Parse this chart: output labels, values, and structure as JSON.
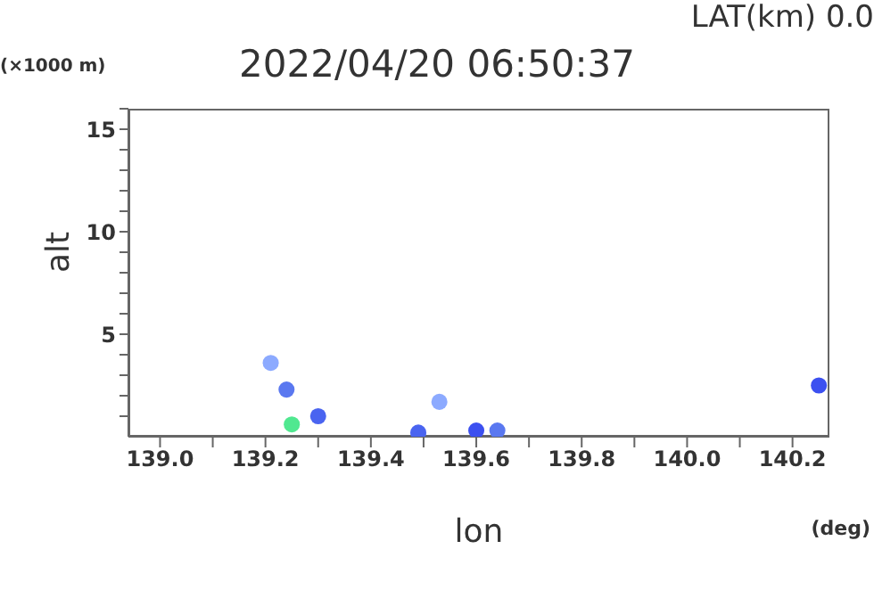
{
  "chart_data": {
    "type": "scatter",
    "title": "2022/04/20 06:50:37",
    "xlabel": "lon",
    "ylabel": "alt",
    "annotations": [
      "LAT(km) 0.0",
      "(×1000 m)",
      "(deg)"
    ],
    "x": [
      139.21,
      139.24,
      139.25,
      139.3,
      139.49,
      139.53,
      139.6,
      139.64,
      140.25
    ],
    "values": [
      3.6,
      2.3,
      0.6,
      1.0,
      0.2,
      1.7,
      0.3,
      0.3,
      2.5
    ],
    "colors": [
      "#8caaff",
      "#5a78f0",
      "#50e890",
      "#4a64f0",
      "#4a64f0",
      "#8caaff",
      "#3c50f0",
      "#5a78f0",
      "#3c50f0"
    ],
    "xlim": [
      138.94,
      140.27
    ],
    "xticks": [
      {
        "value": 139,
        "label": "139.0"
      },
      {
        "value": 139.1,
        "label": null
      },
      {
        "value": 139.2,
        "label": "139.2"
      },
      {
        "value": 139.3,
        "label": null
      },
      {
        "value": 139.4,
        "label": "139.4"
      },
      {
        "value": 139.5,
        "label": null
      },
      {
        "value": 139.6,
        "label": "139.6"
      },
      {
        "value": 139.7,
        "label": null
      },
      {
        "value": 139.8,
        "label": "139.8"
      },
      {
        "value": 139.9,
        "label": null
      },
      {
        "value": 140,
        "label": "140.0"
      },
      {
        "value": 140.1,
        "label": null
      },
      {
        "value": 140.2,
        "label": "140.2"
      }
    ],
    "ylim": [
      0,
      16
    ],
    "yticks": [
      {
        "value": 1,
        "label": null
      },
      {
        "value": 2,
        "label": null
      },
      {
        "value": 3,
        "label": null
      },
      {
        "value": 4,
        "label": null
      },
      5,
      {
        "value": 6,
        "label": null
      },
      {
        "value": 7,
        "label": null
      },
      {
        "value": 8,
        "label": null
      },
      {
        "value": 9,
        "label": null
      },
      10,
      {
        "value": 11,
        "label": null
      },
      {
        "value": 12,
        "label": null
      },
      {
        "value": 13,
        "label": null
      },
      {
        "value": 14,
        "label": null
      },
      15,
      {
        "value": 16,
        "label": null
      }
    ],
    "grid": false,
    "legend": false
  }
}
